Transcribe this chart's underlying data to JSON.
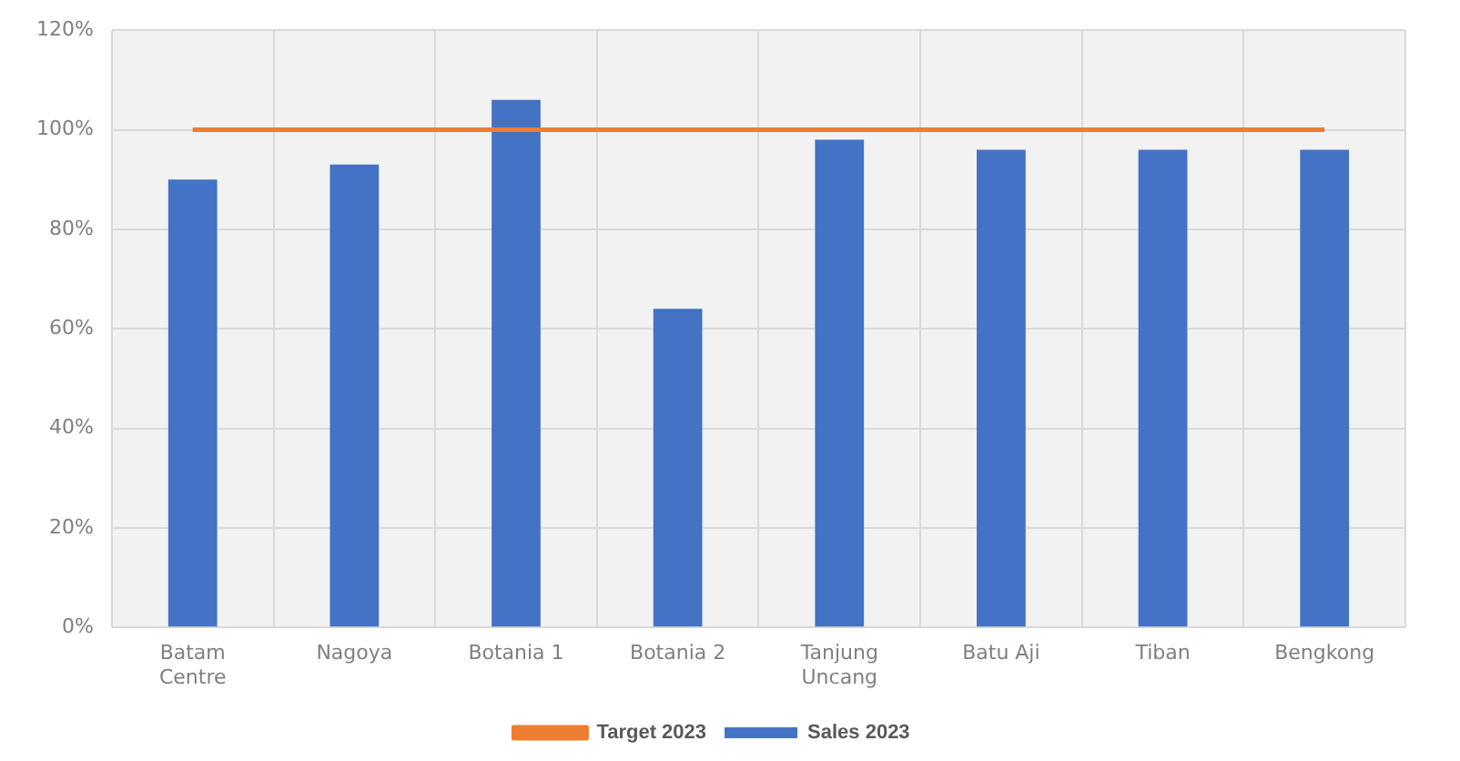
{
  "chart_data": {
    "type": "bar",
    "categories": [
      "Batam Centre",
      "Nagoya",
      "Botania 1",
      "Botania 2",
      "Tanjung Uncang",
      "Batu Aji",
      "Tiban",
      "Bengkong"
    ],
    "series": [
      {
        "name": "Sales 2023",
        "color": "#4472c4",
        "values": [
          90,
          93,
          106,
          64,
          98,
          96,
          96,
          96
        ]
      },
      {
        "name": "Target 2023",
        "type": "line",
        "color": "#ed7d31",
        "marker": "none",
        "values": [
          100,
          100,
          100,
          100,
          100,
          100,
          100,
          100
        ]
      }
    ],
    "ylim": [
      0,
      120
    ],
    "yticks": [
      {
        "value": 0,
        "label": "0%"
      },
      {
        "value": 20,
        "label": "20%"
      },
      {
        "value": 40,
        "label": "40%"
      },
      {
        "value": 60,
        "label": "60%"
      },
      {
        "value": 80,
        "label": "80%"
      },
      {
        "value": 100,
        "label": "100%"
      },
      {
        "value": 120,
        "label": "120%"
      }
    ],
    "grid": true,
    "legend": "bottom"
  }
}
